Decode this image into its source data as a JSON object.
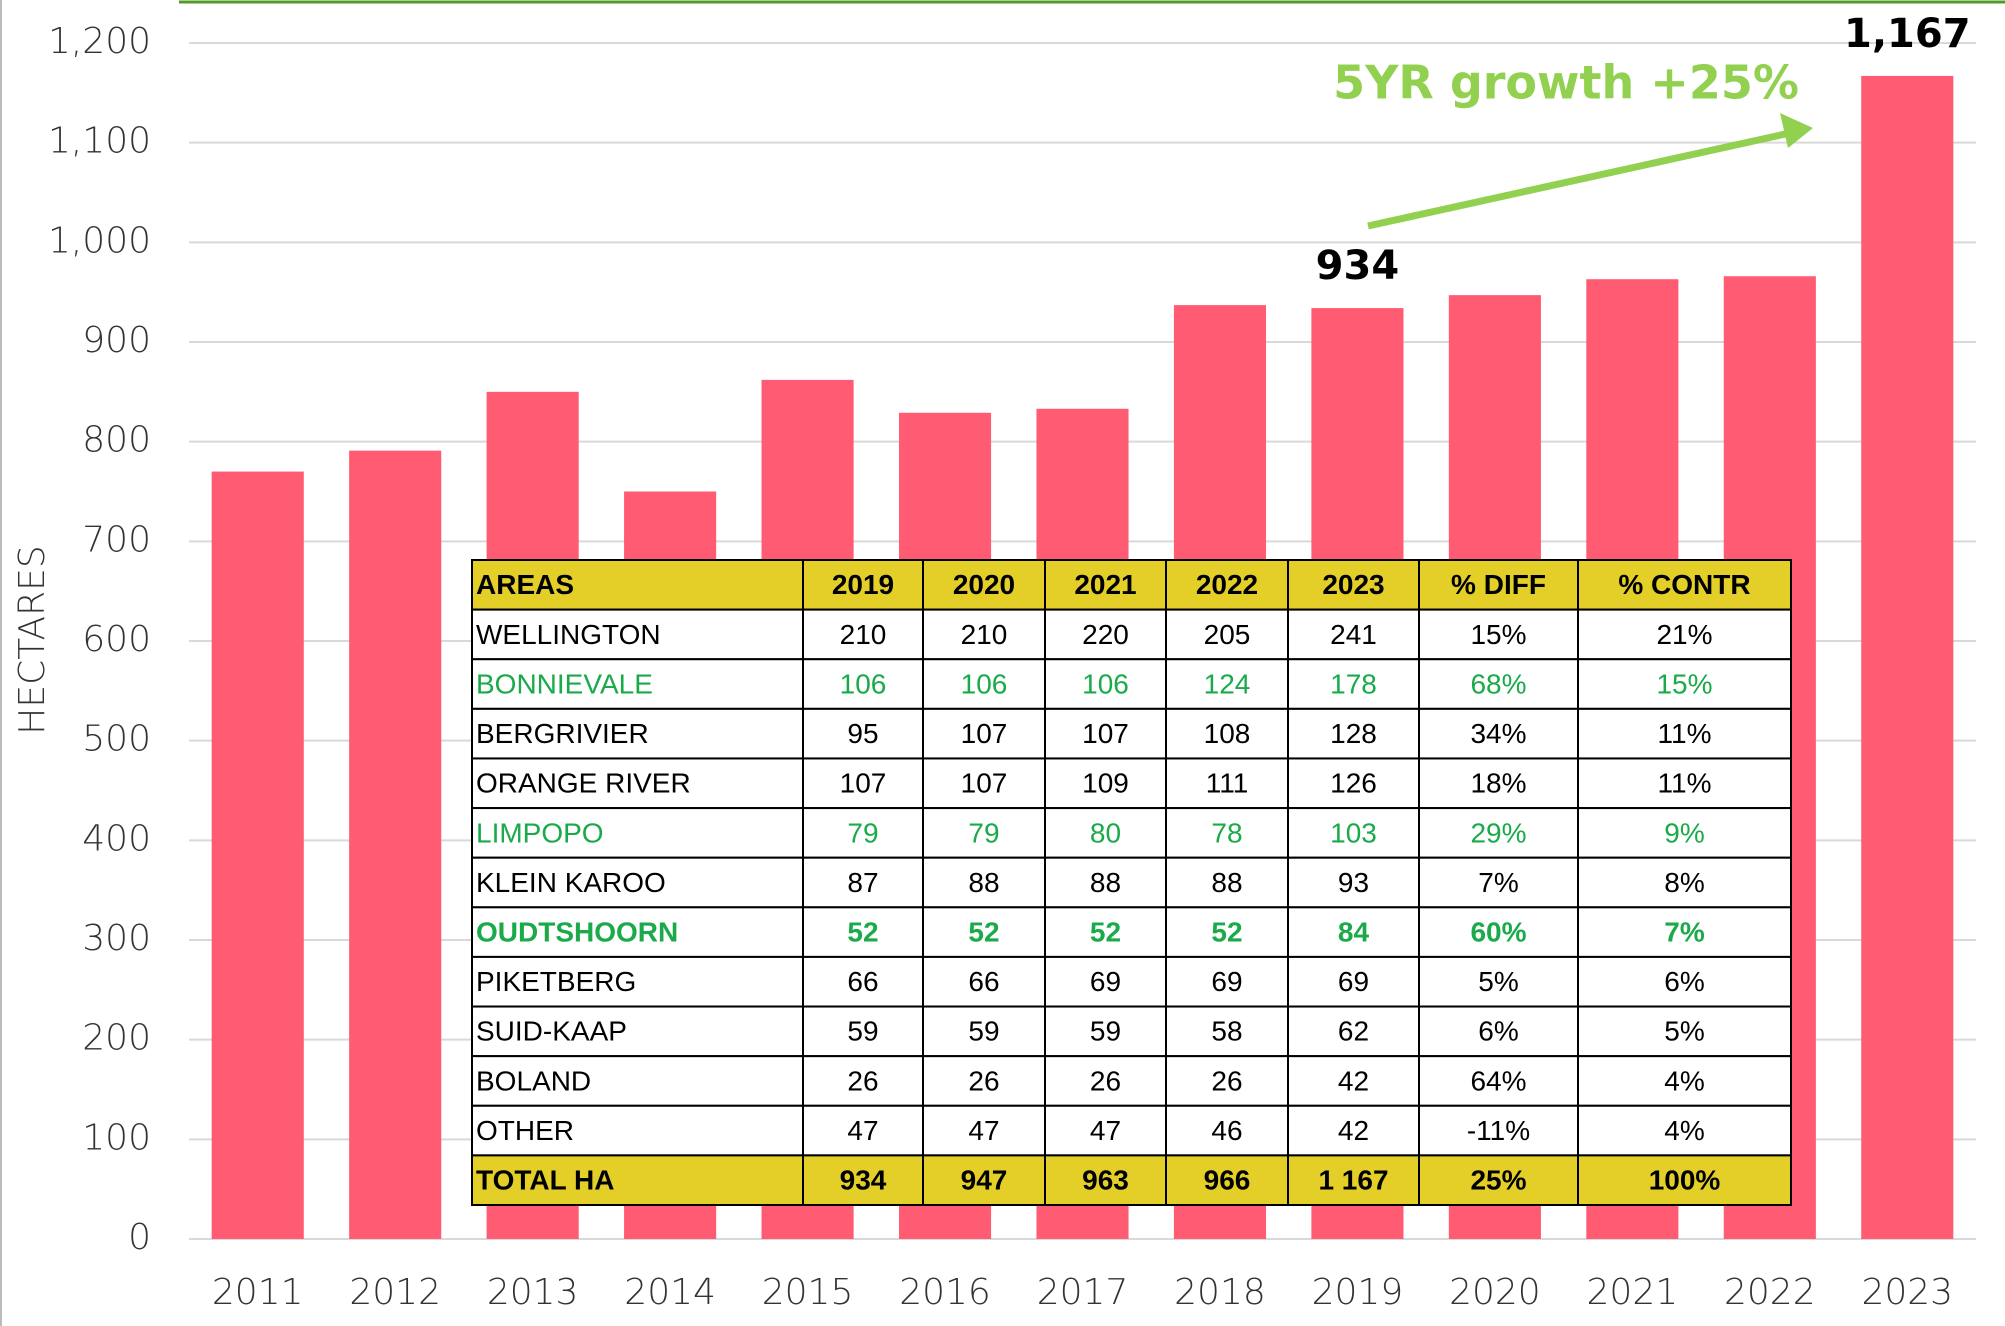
{
  "chart_data": {
    "type": "bar",
    "y_axis_label": "HECTARES",
    "categories": [
      "2011",
      "2012",
      "2013",
      "2014",
      "2015",
      "2016",
      "2017",
      "2018",
      "2019",
      "2020",
      "2021",
      "2022",
      "2023"
    ],
    "values": [
      770,
      791,
      850,
      750,
      862,
      829,
      833,
      937,
      934,
      947,
      963,
      966,
      1167
    ],
    "value_labels": [
      null,
      null,
      null,
      null,
      null,
      null,
      null,
      null,
      "934",
      null,
      null,
      null,
      "1,167"
    ],
    "color": "#ff5b73",
    "ylim": [
      0,
      1200
    ],
    "yticks": [
      0,
      100,
      200,
      300,
      400,
      500,
      600,
      700,
      800,
      900,
      {
        "value": 1000,
        "label": "1,000"
      },
      {
        "value": 1100,
        "label": "1,100"
      },
      {
        "value": 1200,
        "label": "1,200"
      }
    ],
    "grid": true,
    "annotation": {
      "text": "5YR growth +25%",
      "color": "#92d050"
    }
  },
  "table": {
    "header": [
      "AREAS",
      "2019",
      "2020",
      "2021",
      "2022",
      "2023",
      "% DIFF",
      "% CONTR"
    ],
    "header_color": "#e3cf27",
    "rows": [
      {
        "cells": [
          "WELLINGTON",
          "210",
          "210",
          "220",
          "205",
          "241",
          "15%",
          "21%"
        ]
      },
      {
        "cells": [
          "BONNIEVALE",
          "106",
          "106",
          "106",
          "124",
          "178",
          "68%",
          "15%"
        ],
        "color": "#1aaa4a"
      },
      {
        "cells": [
          "BERGRIVIER",
          "95",
          "107",
          "107",
          "108",
          "128",
          "34%",
          "11%"
        ]
      },
      {
        "cells": [
          "ORANGE RIVER",
          "107",
          "107",
          "109",
          "111",
          "126",
          "18%",
          "11%"
        ]
      },
      {
        "cells": [
          "LIMPOPO",
          "79",
          "79",
          "80",
          "78",
          "103",
          "29%",
          "9%"
        ],
        "color": "#1aaa4a"
      },
      {
        "cells": [
          "KLEIN KAROO",
          "87",
          "88",
          "88",
          "88",
          "93",
          "7%",
          "8%"
        ]
      },
      {
        "cells": [
          "OUDTSHOORN",
          "52",
          "52",
          "52",
          "52",
          "84",
          "60%",
          "7%"
        ],
        "color": "#1aaa4a",
        "bold": true
      },
      {
        "cells": [
          "PIKETBERG",
          "66",
          "66",
          "69",
          "69",
          "69",
          "5%",
          "6%"
        ]
      },
      {
        "cells": [
          "SUID-KAAP",
          "59",
          "59",
          "59",
          "58",
          "62",
          "6%",
          "5%"
        ]
      },
      {
        "cells": [
          "BOLAND",
          "26",
          "26",
          "26",
          "26",
          "42",
          "64%",
          "4%"
        ]
      },
      {
        "cells": [
          "OTHER",
          "47",
          "47",
          "47",
          "46",
          "42",
          "-11%",
          "4%"
        ]
      }
    ],
    "total": [
      "TOTAL HA",
      "934",
      "947",
      "963",
      "966",
      "1 167",
      "25%",
      "100%"
    ]
  }
}
